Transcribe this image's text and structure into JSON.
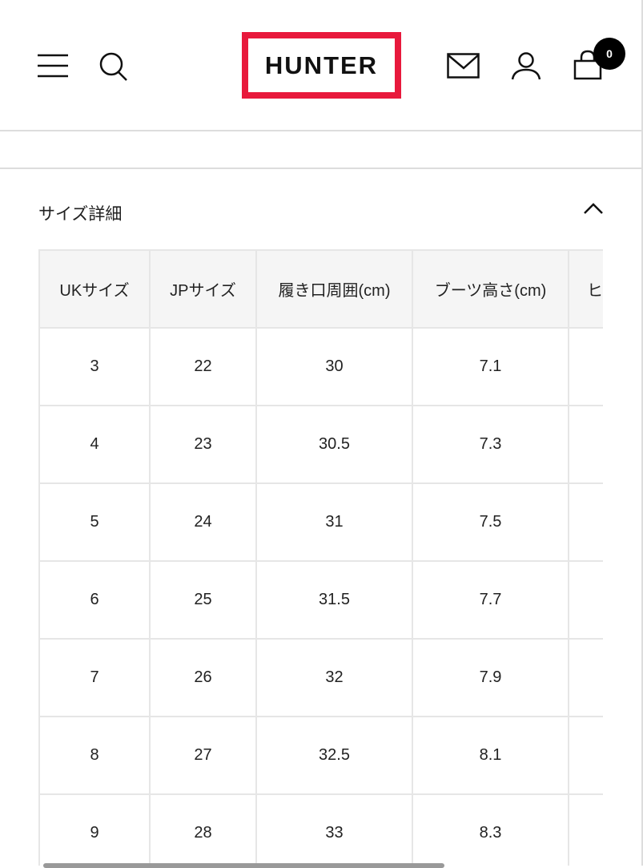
{
  "header": {
    "logo": "HUNTER",
    "cart_count": "0",
    "accent": "#e8193c"
  },
  "section": {
    "title": "サイズ詳細",
    "expanded": true
  },
  "table": {
    "headers": [
      "UKサイズ",
      "JPサイズ",
      "履き口周囲(cm)",
      "ブーツ高さ(cm)",
      "ヒ･"
    ],
    "rows": [
      [
        "3",
        "22",
        "30",
        "7.1",
        ""
      ],
      [
        "4",
        "23",
        "30.5",
        "7.3",
        ""
      ],
      [
        "5",
        "24",
        "31",
        "7.5",
        ""
      ],
      [
        "6",
        "25",
        "31.5",
        "7.7",
        ""
      ],
      [
        "7",
        "26",
        "32",
        "7.9",
        ""
      ],
      [
        "8",
        "27",
        "32.5",
        "8.1",
        ""
      ],
      [
        "9",
        "28",
        "33",
        "8.3",
        ""
      ]
    ]
  }
}
